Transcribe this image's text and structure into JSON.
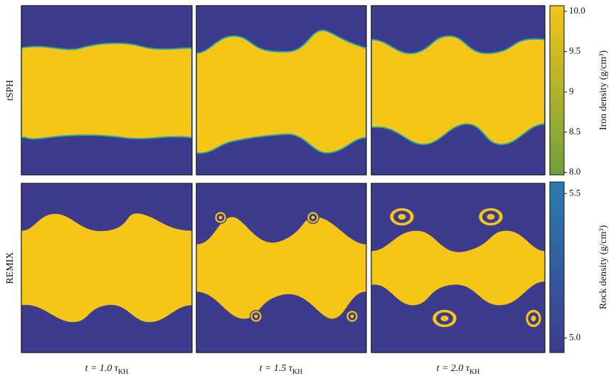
{
  "figure": {
    "row_labels": [
      "tSPH",
      "REMIX"
    ],
    "column_labels": [
      {
        "text": "t = 1.0 τ",
        "sub": "KH"
      },
      {
        "text": "t = 1.5 τ",
        "sub": "KH"
      },
      {
        "text": "t = 2.0 τ",
        "sub": "KH"
      }
    ],
    "colorbars": [
      {
        "label": "Iron density (g/cm³)",
        "lim": [
          7.97,
          10.07
        ],
        "colors": [
          "#6e9f3c",
          "#f5c518"
        ],
        "ticks": [
          {
            "value": 8,
            "label": "8.0"
          },
          8.5,
          9,
          9.5,
          {
            "value": 10,
            "label": "10.0"
          }
        ]
      },
      {
        "label": "Rock density (g/cm³)",
        "lim": [
          4.95,
          5.54
        ],
        "colors": [
          "#3d3b8e",
          "#2a7db0"
        ],
        "ticks": [
          {
            "value": 5,
            "label": "5.0"
          },
          5.5
        ]
      }
    ]
  }
}
